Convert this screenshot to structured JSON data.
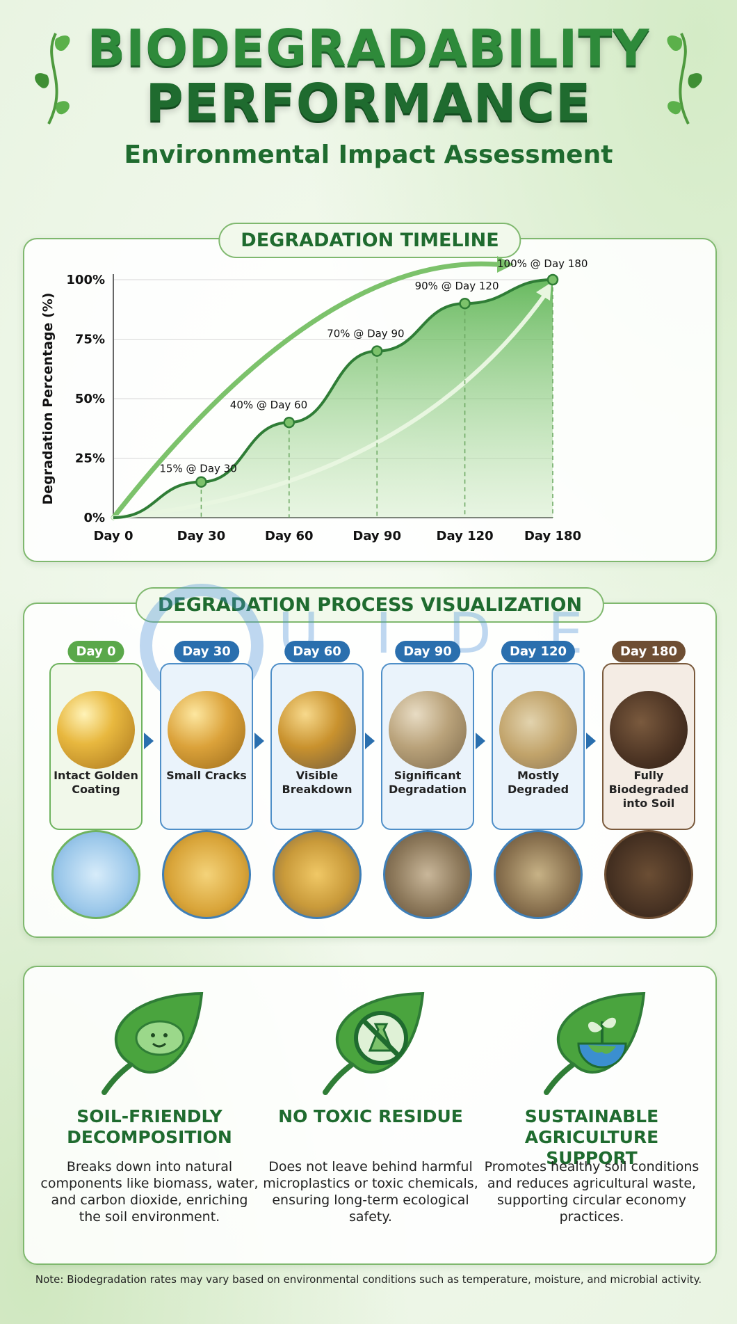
{
  "header": {
    "title_line1": "BIODEGRADABILITY",
    "title_line2": "PERFORMANCE",
    "subtitle": "Environmental Impact Assessment"
  },
  "timeline": {
    "pill": "DEGRADATION TIMELINE"
  },
  "chart_data": {
    "type": "area",
    "title": "DEGRADATION TIMELINE",
    "xlabel": "",
    "ylabel": "Degradation Percentage (%)",
    "categories": [
      "Day 0",
      "Day 30",
      "Day 60",
      "Day 90",
      "Day 120",
      "Day 180"
    ],
    "series": [
      {
        "name": "Degradation",
        "values": [
          0,
          15,
          40,
          70,
          90,
          100
        ]
      }
    ],
    "ylim": [
      0,
      100
    ],
    "yticks": [
      "0%",
      "25%",
      "50%",
      "75%",
      "100%"
    ],
    "ytick_values": [
      0,
      25,
      50,
      75,
      100
    ],
    "point_labels": [
      "15% @ Day 30",
      "40% @ Day 60",
      "70% @ Day 90",
      "90% @ Day 120",
      "100% @ Day 180"
    ],
    "grid": true
  },
  "process": {
    "pill": "DEGRADATION PROCESS VISUALIZATION",
    "stages": [
      {
        "day": "Day 0",
        "label": "Intact Golden Coating"
      },
      {
        "day": "Day 30",
        "label": "Small Cracks"
      },
      {
        "day": "Day 60",
        "label": "Visible Breakdown"
      },
      {
        "day": "Day 90",
        "label": "Significant Degradation"
      },
      {
        "day": "Day 120",
        "label": "Mostly Degraded"
      },
      {
        "day": "Day 180",
        "label": "Fully Biodegraded into Soil"
      }
    ]
  },
  "watermark": {
    "text": "U I D E"
  },
  "benefits": [
    {
      "icon": "microbe-leaf-icon",
      "title": "SOIL-FRIENDLY DECOMPOSITION",
      "description": "Breaks down into natural components like biomass, water, and carbon dioxide, enriching the soil environment."
    },
    {
      "icon": "no-chemicals-leaf-icon",
      "title": "NO TOXIC RESIDUE",
      "description": "Does not leave behind harmful microplastics or toxic chemicals, ensuring long-term ecological safety."
    },
    {
      "icon": "earth-sprout-leaf-icon",
      "title": "SUSTAINABLE AGRICULTURE SUPPORT",
      "description": "Promotes healthy soil conditions and reduces agricultural waste, supporting circular economy practices."
    }
  ],
  "note": "Note: Biodegradation rates may vary based on environmental conditions such as temperature, moisture, and microbial activity.",
  "colors": {
    "accent": "#2e8a3a",
    "dark_green": "#1f6b2f",
    "blue": "#2a6fae",
    "brown": "#6e4e33",
    "gold": "#d9a53a"
  }
}
